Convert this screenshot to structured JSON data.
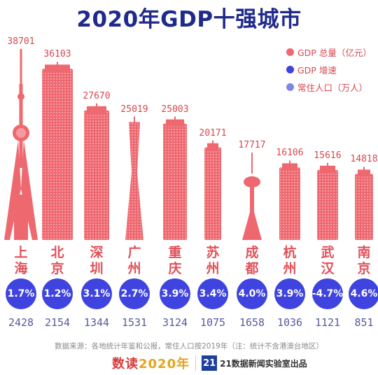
{
  "title": "2020年GDP十强城市",
  "legend": [
    {
      "label": "GDP 总量（亿元）",
      "color": "#ee6870"
    },
    {
      "label": "GDP 增速",
      "color": "#3f43df"
    },
    {
      "label": "常住人口（万人）",
      "color": "#7e86ea"
    }
  ],
  "chart_data": {
    "type": "bar",
    "title": "2020年GDP十强城市",
    "categories": [
      "上海",
      "北京",
      "深圳",
      "广州",
      "重庆",
      "苏州",
      "成都",
      "杭州",
      "武汉",
      "南京"
    ],
    "series": [
      {
        "name": "GDP 总量（亿元）",
        "values": [
          38701,
          36103,
          27670,
          25019,
          25003,
          20171,
          17717,
          16106,
          15616,
          14818
        ]
      },
      {
        "name": "GDP 增速",
        "values": [
          "1.7%",
          "1.2%",
          "3.1%",
          "2.7%",
          "3.9%",
          "3.4%",
          "4.0%",
          "3.9%",
          "-4.7%",
          "4.6%"
        ]
      },
      {
        "name": "常住人口（万人）",
        "values": [
          2428,
          2154,
          1344,
          1531,
          3124,
          1075,
          1658,
          1036,
          1121,
          851
        ]
      }
    ],
    "bar_style": "skyscraper",
    "colors": {
      "gdp": "#ee6870",
      "growth": "#3f43df",
      "population": "#555a9e"
    }
  },
  "source": "数据来源：各地统计年鉴和公报，常住人口按2019年（注：统计不含港澳台地区）",
  "footer": {
    "brand_part1": "数读",
    "brand_part2": "2020年",
    "badge": "21",
    "org": "21数据新闻实验室出品"
  }
}
